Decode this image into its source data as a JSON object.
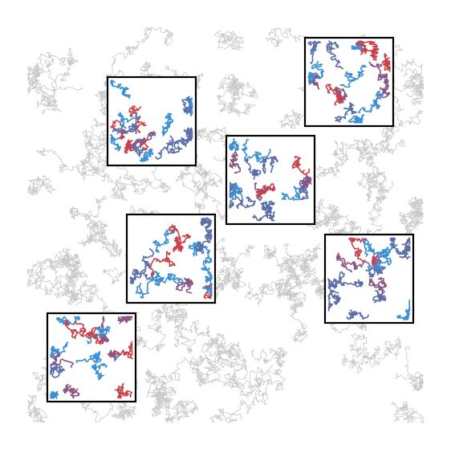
{
  "figure": {
    "background_color": "#ffffff",
    "background_walk_color": "#c8c8c8",
    "box_border_color": "#000000",
    "segment_colors": [
      "#3a8fd6",
      "#5b6ea8",
      "#8a5580",
      "#c94048"
    ],
    "box_count": 6
  }
}
